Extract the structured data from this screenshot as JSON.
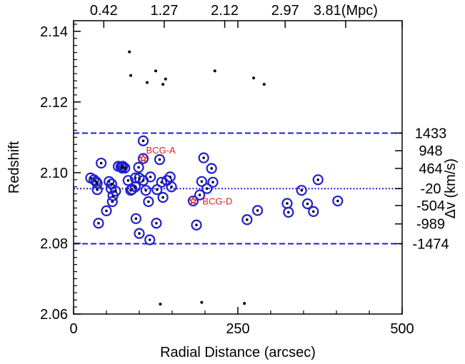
{
  "chart_data": {
    "type": "scatter",
    "xlabel": "Radial Distance (arcsec)",
    "ylabel": "Redshift",
    "xlim": [
      0,
      500
    ],
    "ylim": [
      2.06,
      2.143
    ],
    "x_ticks": [
      0,
      250,
      500
    ],
    "y_ticks": [
      2.06,
      2.08,
      2.1,
      2.12,
      2.14
    ],
    "y_tick_labels": [
      "2.06",
      "2.08",
      "2.10",
      "2.12",
      "2.14"
    ],
    "top_axis": {
      "tick_positions": [
        46,
        138,
        230,
        322,
        414
      ],
      "tick_labels": [
        "0.42",
        "1.27",
        "2.12",
        "2.97",
        "3.81(Mpc)"
      ]
    },
    "right_axis": {
      "label": "Δv (km/s)",
      "tick_positions": [
        2.1112,
        2.1062,
        2.1012,
        2.0955,
        2.0907,
        2.0855,
        2.0799
      ],
      "tick_labels": [
        "1433",
        "948",
        "464",
        "-20",
        "-504",
        "-989",
        "-1474"
      ]
    },
    "reference_lines": [
      {
        "y": 2.1112,
        "style": "dashed",
        "color": "#1f1fd0"
      },
      {
        "y": 2.0955,
        "style": "dotted",
        "color": "#1f1fd0"
      },
      {
        "y": 2.0799,
        "style": "dashed",
        "color": "#1f1fd0"
      }
    ],
    "grid": false,
    "series": [
      {
        "marker": "dot-in-circle",
        "color": "#1f1fd0",
        "points": [
          [
            26,
            2.0985
          ],
          [
            31,
            2.098
          ],
          [
            34,
            2.0975
          ],
          [
            36,
            2.0952
          ],
          [
            36,
            2.097
          ],
          [
            38,
            2.0857
          ],
          [
            42,
            2.1027
          ],
          [
            50,
            2.0892
          ],
          [
            54,
            2.0975
          ],
          [
            57,
            2.0955
          ],
          [
            58,
            2.0968
          ],
          [
            59,
            2.0918
          ],
          [
            60,
            2.0935
          ],
          [
            64,
            2.0948
          ],
          [
            68,
            2.1018
          ],
          [
            72,
            2.1017
          ],
          [
            74,
            2.1013
          ],
          [
            75,
            2.1018
          ],
          [
            78,
            2.1013
          ],
          [
            83,
            2.0978
          ],
          [
            87,
            2.095
          ],
          [
            89,
            2.0953
          ],
          [
            94,
            2.0985
          ],
          [
            94,
            2.096
          ],
          [
            95,
            2.087
          ],
          [
            99,
            2.1015
          ],
          [
            100,
            2.0828
          ],
          [
            100,
            2.0985
          ],
          [
            106,
            2.109
          ],
          [
            106,
            2.0978
          ],
          [
            110,
            2.095
          ],
          [
            114,
            2.0918
          ],
          [
            116,
            2.081
          ],
          [
            117,
            2.0988
          ],
          [
            126,
            2.0857
          ],
          [
            127,
            2.0952
          ],
          [
            131,
            2.1037
          ],
          [
            134,
            2.0973
          ],
          [
            136,
            2.093
          ],
          [
            142,
            2.0978
          ],
          [
            147,
            2.0988
          ],
          [
            149,
            2.096
          ],
          [
            192,
            2.0937
          ],
          [
            195,
            2.0975
          ],
          [
            198,
            2.1042
          ],
          [
            203,
            2.0955
          ],
          [
            210,
            2.1012
          ],
          [
            212,
            2.0973
          ],
          [
            187,
            2.0852
          ],
          [
            264,
            2.0867
          ],
          [
            280,
            2.0893
          ],
          [
            325,
            2.0913
          ],
          [
            327,
            2.0888
          ],
          [
            347,
            2.095
          ],
          [
            356,
            2.0912
          ],
          [
            365,
            2.089
          ],
          [
            372,
            2.098
          ],
          [
            402,
            2.092
          ]
        ]
      },
      {
        "marker": "dot",
        "color": "#000000",
        "points": [
          [
            85,
            2.1342
          ],
          [
            87,
            2.1275
          ],
          [
            112,
            2.1255
          ],
          [
            125,
            2.1288
          ],
          [
            136,
            2.125
          ],
          [
            140,
            2.1265
          ],
          [
            215,
            2.1288
          ],
          [
            274,
            2.1268
          ],
          [
            290,
            2.125
          ],
          [
            132,
            2.0628
          ],
          [
            195,
            2.0633
          ],
          [
            260,
            2.063
          ]
        ]
      },
      {
        "marker": "star-in-circle",
        "color": "#e02020",
        "points": [
          [
            106,
            2.104
          ],
          [
            182,
            2.092
          ]
        ]
      }
    ],
    "annotations": [
      {
        "text": "BCG-A",
        "x": 106,
        "y": 2.104,
        "color": "#e02020"
      },
      {
        "text": "BCG-D",
        "x": 182,
        "y": 2.092,
        "color": "#e02020"
      }
    ]
  }
}
